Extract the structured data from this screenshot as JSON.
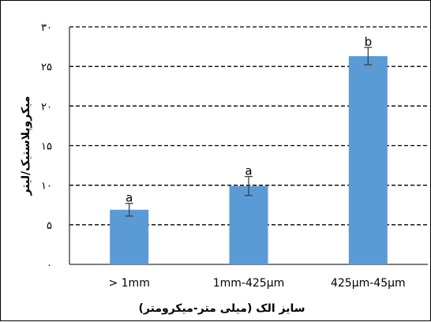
{
  "chart_data": {
    "type": "bar",
    "title": "",
    "xlabel": "سایز الک (میلی متر-میکرومتر)",
    "ylabel": "میکروپلاستیک/لیتر",
    "categories": [
      "> 1mm",
      "1mm-425µm",
      "425µm-45µm"
    ],
    "values": [
      6.9,
      9.9,
      26.3
    ],
    "errors": [
      0.8,
      1.2,
      1.1
    ],
    "significance_letters": [
      "a",
      "a",
      "b"
    ],
    "ylim": [
      0,
      30
    ],
    "yticks": [
      0,
      5,
      10,
      15,
      20,
      25,
      30
    ],
    "ytick_labels": [
      "۰",
      "۵",
      "۱۰",
      "۱۵",
      "۲۰",
      "۲۵",
      "۳۰"
    ],
    "grid": true,
    "grid_style": "dashed",
    "legend": "none",
    "bar_color": "#5B9BD5",
    "error_bar_color": "#404040"
  }
}
